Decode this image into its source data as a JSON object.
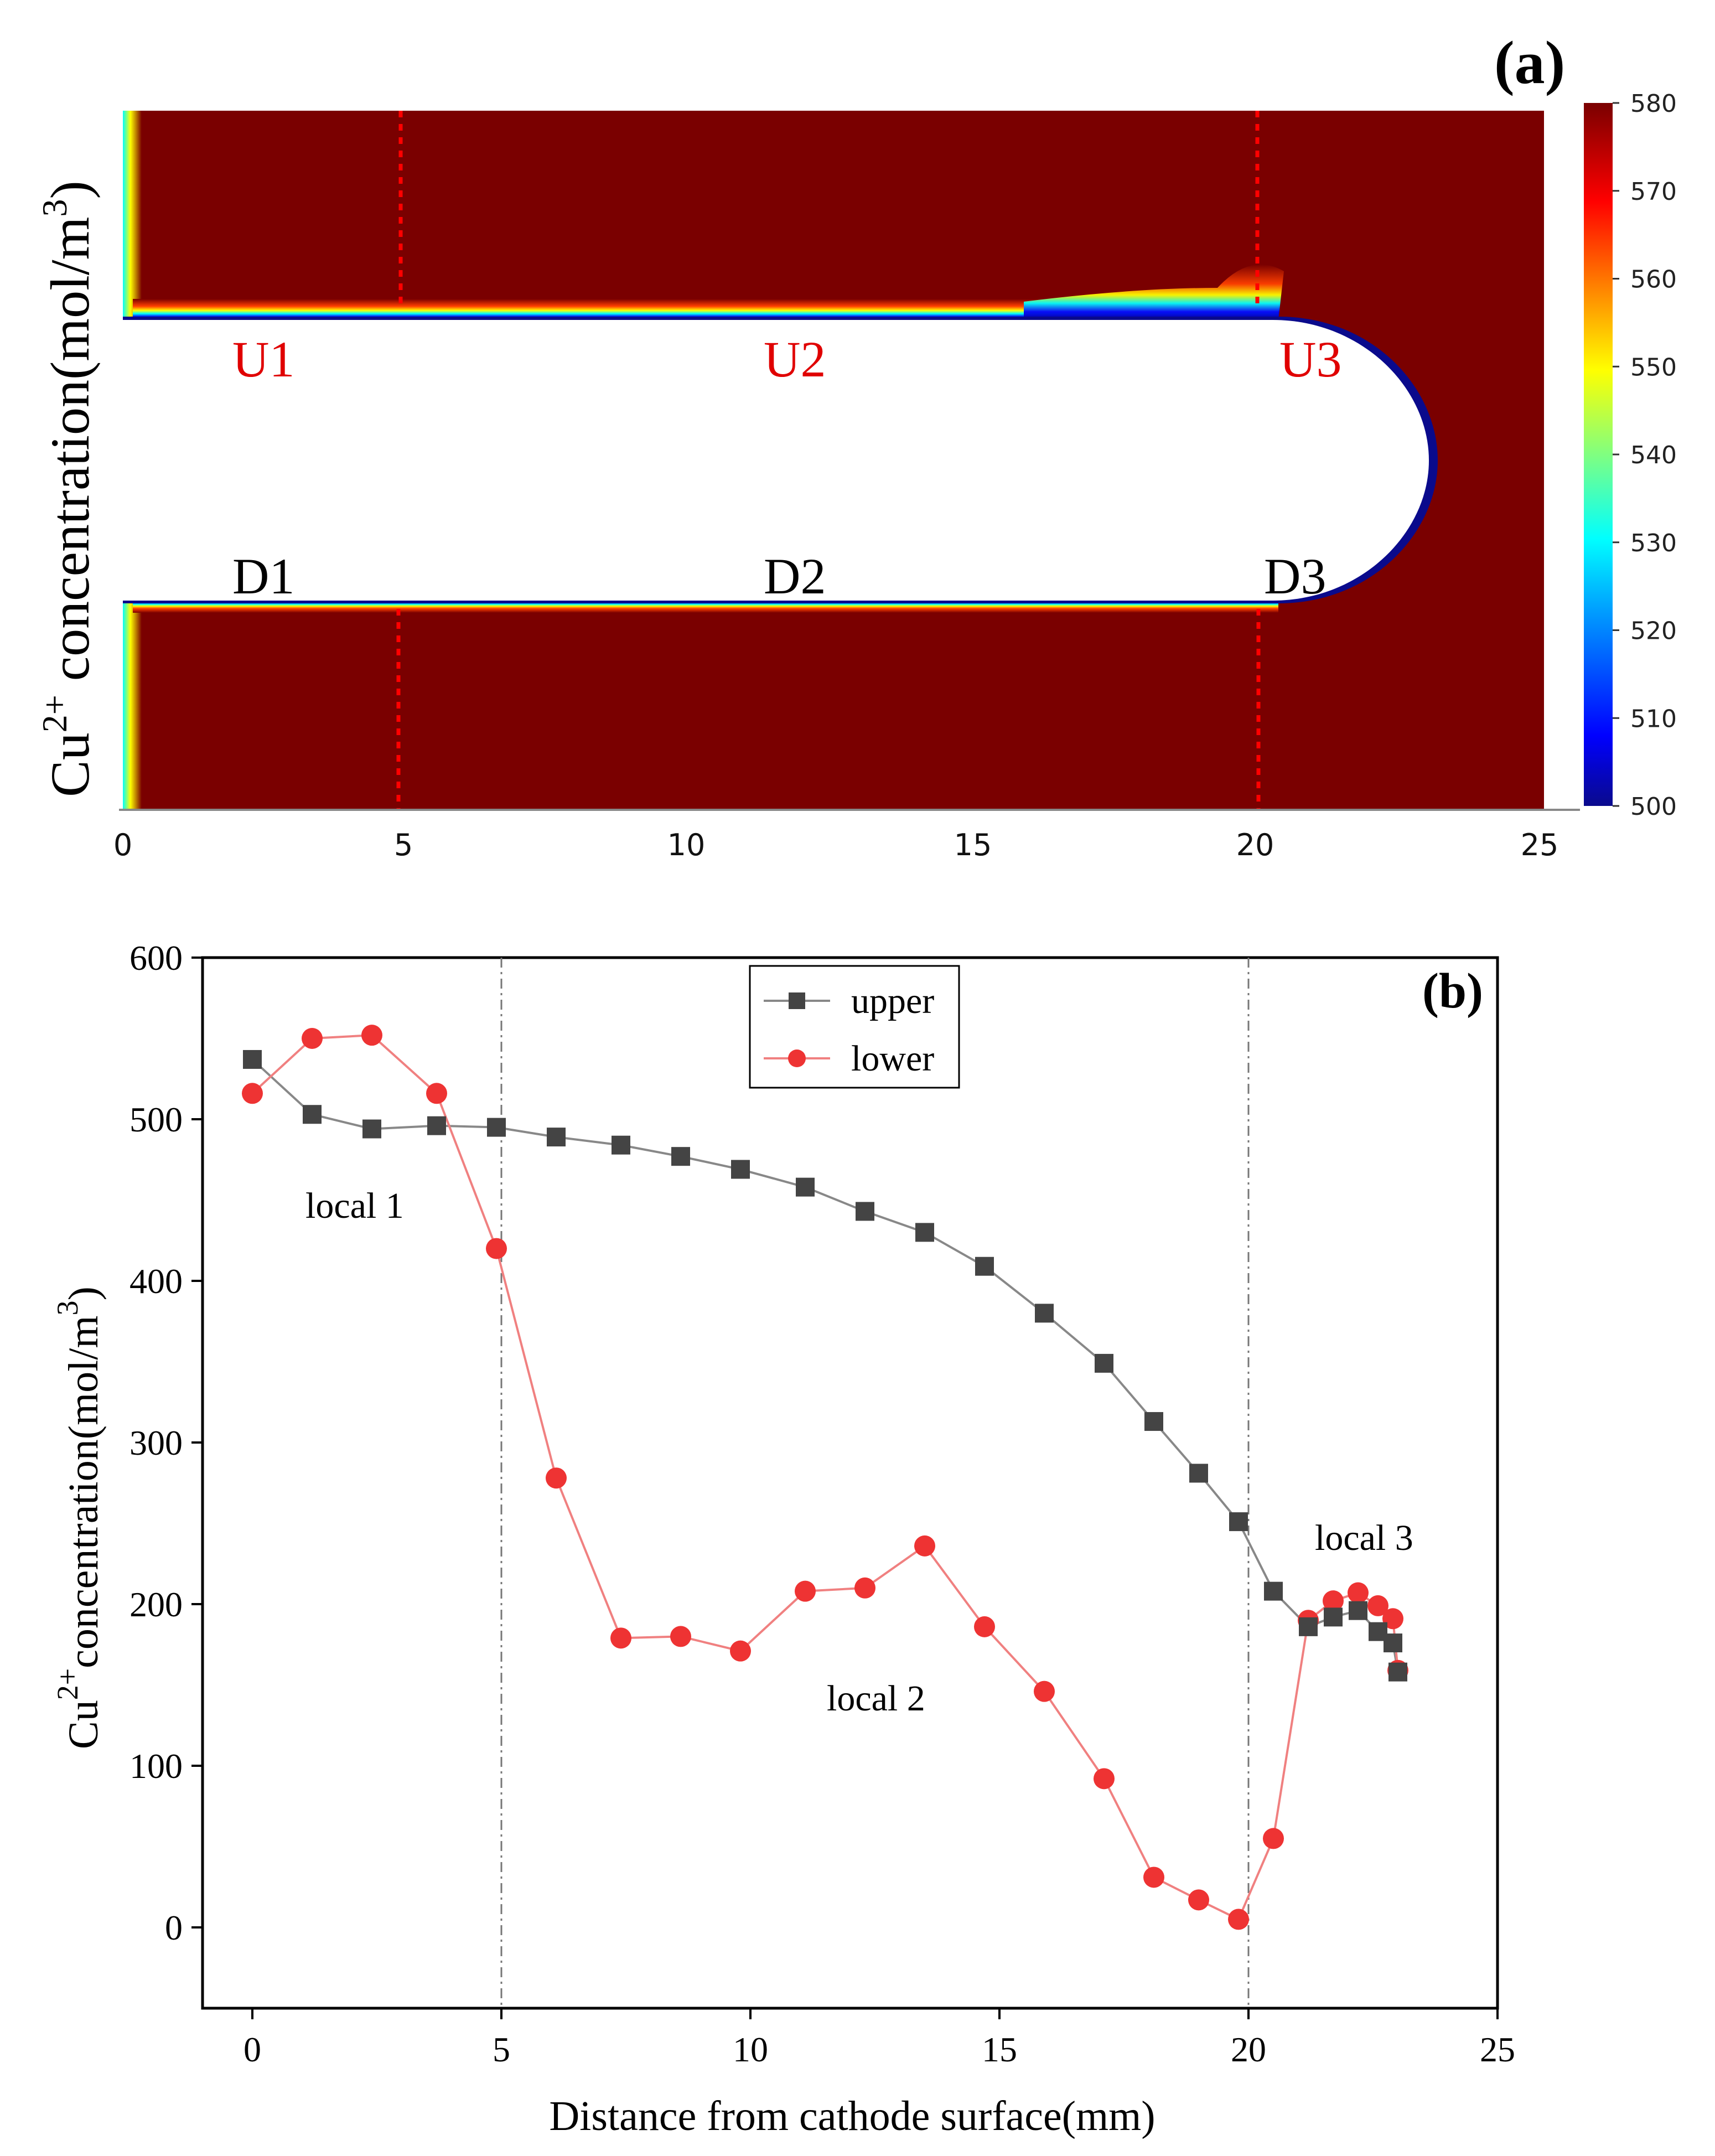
{
  "figure": {
    "panel_a": {
      "label": "(a)",
      "ylabel_main": "Cu",
      "ylabel_sup": "2+",
      "ylabel_rest": " concentration(mol/m",
      "ylabel_sup2": "3",
      "ylabel_close": ")",
      "x_ticks": [
        "0",
        "5",
        "10",
        "15",
        "20",
        "25"
      ],
      "upper_labels": [
        "U1",
        "U2",
        "U3"
      ],
      "lower_labels": [
        "D1",
        "D2",
        "D3"
      ],
      "colorbar_ticks": [
        "580",
        "570",
        "560",
        "550",
        "540",
        "530",
        "520",
        "510",
        "500"
      ],
      "colors": {
        "field": "#7a0000",
        "label_red": "#e00000",
        "label_black": "#000000",
        "dashed": "#ff0000",
        "colormap": [
          "#0a0a8c",
          "#0000ff",
          "#00a0ff",
          "#00ffff",
          "#80ff80",
          "#ffff00",
          "#ff8000",
          "#ff0000",
          "#7a0000"
        ]
      }
    },
    "panel_b": {
      "label": "(b)",
      "annotations": [
        "local 1",
        "local 2",
        "local 3"
      ]
    }
  },
  "chart_data": {
    "type": "line",
    "title": "",
    "xlabel": "Distance from cathode surface(mm)",
    "ylabel_main": "Cu",
    "ylabel_sup": "2+",
    "ylabel_rest": "concentration(mol/m",
    "ylabel_sup2": "3",
    "ylabel_close": ")",
    "xlim": [
      -1,
      25
    ],
    "ylim": [
      -50,
      600
    ],
    "x_ticks": [
      0,
      5,
      10,
      15,
      20,
      25
    ],
    "y_ticks": [
      0,
      100,
      200,
      300,
      400,
      500,
      600
    ],
    "reference_lines_x": [
      5,
      20
    ],
    "legend_position": "top-center",
    "grid": false,
    "series": [
      {
        "name": "upper",
        "color": "#444444",
        "line_color": "#888888",
        "marker": "square",
        "x": [
          0,
          1.2,
          2.4,
          3.7,
          4.9,
          6.1,
          7.4,
          8.6,
          9.8,
          11.1,
          12.3,
          13.5,
          14.7,
          15.9,
          17.1,
          18.1,
          19.0,
          19.8,
          20.5,
          21.2,
          21.7,
          22.2,
          22.6,
          22.9,
          23.0
        ],
        "y": [
          537,
          503,
          494,
          496,
          495,
          489,
          484,
          477,
          469,
          458,
          443,
          430,
          409,
          380,
          349,
          313,
          281,
          251,
          208,
          186,
          192,
          196,
          183,
          176,
          158
        ]
      },
      {
        "name": "lower",
        "color": "#ee3333",
        "line_color": "#f08080",
        "marker": "circle",
        "x": [
          0,
          1.2,
          2.4,
          3.7,
          4.9,
          6.1,
          7.4,
          8.6,
          9.8,
          11.1,
          12.3,
          13.5,
          14.7,
          15.9,
          17.1,
          18.1,
          19.0,
          19.8,
          20.5,
          21.2,
          21.7,
          22.2,
          22.6,
          22.9,
          23.0
        ],
        "y": [
          516,
          550,
          552,
          516,
          420,
          278,
          179,
          180,
          171,
          208,
          210,
          236,
          186,
          146,
          92,
          31,
          17,
          5,
          55,
          190,
          202,
          207,
          199,
          191,
          159
        ]
      }
    ]
  }
}
